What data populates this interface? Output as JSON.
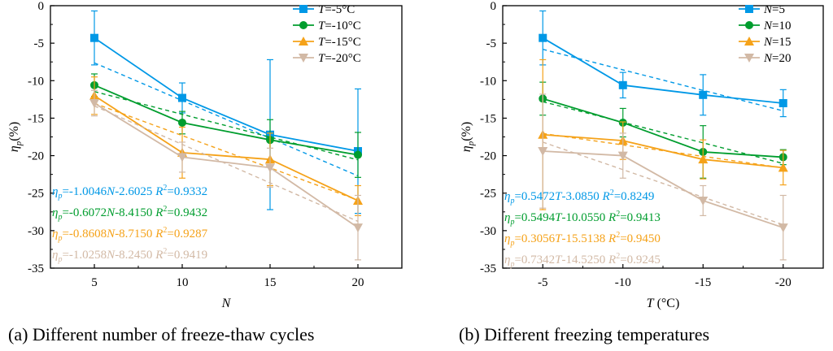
{
  "chart_data": [
    {
      "type": "line",
      "panel": "a",
      "caption": "(a) Different number of freeze-thaw cycles",
      "xlabel": "N",
      "ylabel_symbol": "η",
      "ylabel_sub": "p",
      "ylabel_unit": "(%)",
      "x": [
        5,
        10,
        15,
        20
      ],
      "xticks": [
        "5",
        "10",
        "15",
        "20"
      ],
      "xlim": [
        2.5,
        22.5
      ],
      "ylim": [
        -35,
        0
      ],
      "yticks": [
        0,
        -5,
        -10,
        -15,
        -20,
        -25,
        -30,
        -35
      ],
      "ytick_labels": [
        "0",
        "-5",
        "-10",
        "-15",
        "-20",
        "-25",
        "-30",
        "-35"
      ],
      "legend_position": "top-right",
      "series": [
        {
          "name": "T=-5°C",
          "legend_var": "T",
          "legend_rest": "=-5°C",
          "color": "#0098E6",
          "marker": "square",
          "values": [
            -4.3,
            -12.3,
            -17.2,
            -19.4
          ],
          "err": [
            3.6,
            2.0,
            10.0,
            8.3
          ],
          "fit": {
            "slope": -1.0046,
            "intercept": -2.6025
          },
          "fit_label": "=-1.0046N-2.6025 R²=0.9332"
        },
        {
          "name": "T=-10°C",
          "legend_var": "T",
          "legend_rest": "=-10°C",
          "color": "#009D2E",
          "marker": "circle",
          "values": [
            -10.6,
            -15.6,
            -17.9,
            -19.9
          ],
          "err": [
            1.5,
            1.5,
            2.7,
            3.0
          ],
          "fit": {
            "slope": -0.6072,
            "intercept": -8.415
          },
          "fit_label": "=-0.6072N-8.4150 R²=0.9432"
        },
        {
          "name": "T=-15°C",
          "legend_var": "T",
          "legend_rest": "=-15°C",
          "color": "#F5A219",
          "marker": "triangle-up",
          "values": [
            -12.0,
            -19.6,
            -20.5,
            -26.0
          ],
          "err": [
            2.5,
            3.4,
            3.5,
            2.0
          ],
          "fit": {
            "slope": -0.8608,
            "intercept": -8.715
          },
          "fit_label": "=-0.8608N-8.7150 R²=0.9287"
        },
        {
          "name": "T=-20°C",
          "legend_var": "T",
          "legend_rest": "=-20°C",
          "color": "#D2B9A5",
          "marker": "triangle-down",
          "values": [
            -13.0,
            -20.2,
            -21.6,
            -29.6
          ],
          "err": [
            1.7,
            2.0,
            2.6,
            4.3
          ],
          "fit": {
            "slope": -1.0258,
            "intercept": -8.245
          },
          "fit_label": "=-1.0258N-8.2450 R²=0.9419"
        }
      ]
    },
    {
      "type": "line",
      "panel": "b",
      "caption": "(b) Different freezing temperatures",
      "xlabel": "T",
      "xlabel_unit": "(°C)",
      "ylabel_symbol": "η",
      "ylabel_sub": "p",
      "ylabel_unit": "(%)",
      "x": [
        -5,
        -10,
        -15,
        -20
      ],
      "xticks": [
        "-5",
        "-10",
        "-15",
        "-20"
      ],
      "xlim": [
        -2.5,
        -22.5
      ],
      "ylim": [
        -35,
        0
      ],
      "yticks": [
        0,
        -5,
        -10,
        -15,
        -20,
        -25,
        -30,
        -35
      ],
      "ytick_labels": [
        "0",
        "-5",
        "-10",
        "-15",
        "-20",
        "-25",
        "-30",
        "-35"
      ],
      "legend_position": "top-right",
      "series": [
        {
          "name": "N=5",
          "legend_var": "N",
          "legend_rest": "=5",
          "color": "#0098E6",
          "marker": "square",
          "values": [
            -4.3,
            -10.6,
            -11.9,
            -13.0
          ],
          "err": [
            3.6,
            1.7,
            2.7,
            1.8
          ],
          "fit": {
            "slope": 0.5472,
            "intercept": -3.085
          },
          "fit_label": "=0.5472T-3.0850 R²=0.8249"
        },
        {
          "name": "N=10",
          "legend_var": "N",
          "legend_rest": "=10",
          "color": "#009D2E",
          "marker": "circle",
          "values": [
            -12.4,
            -15.6,
            -19.5,
            -20.2
          ],
          "err": [
            2.2,
            1.9,
            3.5,
            1.0
          ],
          "fit": {
            "slope": 0.5494,
            "intercept": -10.055
          },
          "fit_label": "=0.5494T-10.0550 R²=0.9413"
        },
        {
          "name": "N=15",
          "legend_var": "N",
          "legend_rest": "=15",
          "color": "#F5A219",
          "marker": "triangle-up",
          "values": [
            -17.2,
            -18.0,
            -20.5,
            -21.6
          ],
          "err": [
            10.0,
            2.5,
            2.6,
            2.3
          ],
          "fit": {
            "slope": 0.3056,
            "intercept": -15.5138
          },
          "fit_label": "=0.3056T-15.5138 R²=0.9450"
        },
        {
          "name": "N=20",
          "legend_var": "N",
          "legend_rest": "=20",
          "color": "#D2B9A5",
          "marker": "triangle-down",
          "values": [
            -19.4,
            -20.0,
            -26.0,
            -29.6
          ],
          "err": [
            7.6,
            3.0,
            2.0,
            4.3
          ],
          "fit": {
            "slope": 0.7342,
            "intercept": -14.525
          },
          "fit_label": "=0.7342T-14.5250 R²=0.9245"
        }
      ]
    }
  ]
}
